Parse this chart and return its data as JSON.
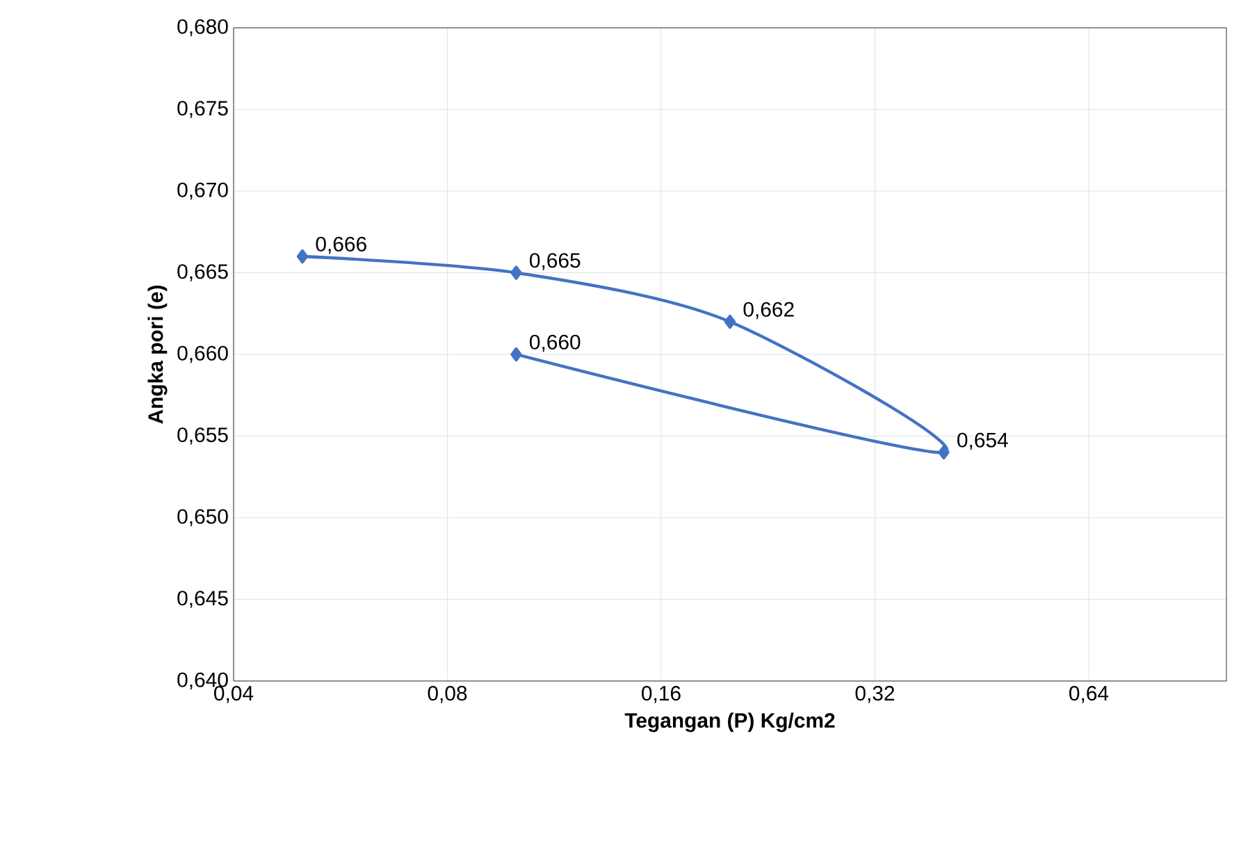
{
  "chart_data": {
    "type": "line",
    "xlabel": "Tegangan (P) Kg/cm2",
    "ylabel": "Angka pori (e)",
    "x": [
      0.05,
      0.1,
      0.2,
      0.4,
      0.1
    ],
    "series": [
      {
        "color": "#4472c4",
        "values": [
          0.666,
          0.665,
          0.662,
          0.654,
          0.66
        ],
        "value_labels": [
          "0,666",
          "0,665",
          "0,662",
          "0,654",
          "0,660"
        ]
      }
    ],
    "log": "x",
    "xlim": [
      0.04,
      1.0
    ],
    "xticks": [
      {
        "value": 0.04,
        "label": "0,04"
      },
      {
        "value": 0.08,
        "label": "0,08"
      },
      {
        "value": 0.16,
        "label": "0,16"
      },
      {
        "value": 0.32,
        "label": "0,32"
      },
      {
        "value": 0.64,
        "label": "0,64"
      }
    ],
    "ylim": [
      0.64,
      0.68
    ],
    "yticks": [
      {
        "value": 0.64,
        "label": "0,640"
      },
      {
        "value": 0.645,
        "label": "0,645"
      },
      {
        "value": 0.65,
        "label": "0,650"
      },
      {
        "value": 0.655,
        "label": "0,655"
      },
      {
        "value": 0.66,
        "label": "0,660"
      },
      {
        "value": 0.665,
        "label": "0,665"
      },
      {
        "value": 0.67,
        "label": "0,670"
      },
      {
        "value": 0.675,
        "label": "0,675"
      },
      {
        "value": 0.68,
        "label": "0,680"
      }
    ],
    "grid": true,
    "marker": "diamond",
    "line_style": "solid"
  }
}
